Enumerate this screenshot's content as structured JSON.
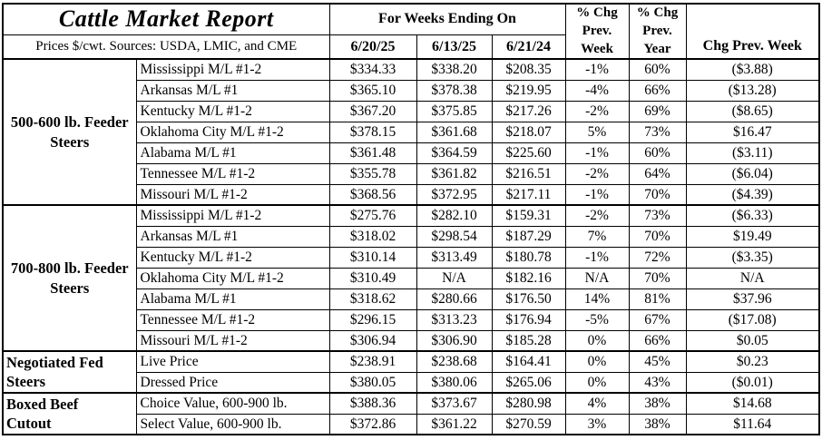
{
  "header": {
    "title": "Cattle Market Report",
    "sources": "Prices $/cwt. Sources: USDA, LMIC, and CME",
    "weeks_ending": "For Weeks Ending On",
    "dates": [
      "6/20/25",
      "6/13/25",
      "6/21/24"
    ],
    "pct_chg_prev_week": "% Chg\nPrev.\nWeek",
    "pct_chg_prev_year": "% Chg\nPrev.\nYear",
    "chg_prev_week": "Chg Prev. Week"
  },
  "colors": {
    "border": "#000000",
    "background": "#ffffff",
    "text": "#000000"
  },
  "sections": [
    {
      "category": "500-600 lb. Feeder\nSteers",
      "align": "center",
      "rows": [
        {
          "label": "Mississippi M/L #1-2",
          "values": [
            "$334.33",
            "$338.20",
            "$208.35",
            "-1%",
            "60%",
            "($3.88)"
          ]
        },
        {
          "label": "Arkansas M/L #1",
          "values": [
            "$365.10",
            "$378.38",
            "$219.95",
            "-4%",
            "66%",
            "($13.28)"
          ]
        },
        {
          "label": "Kentucky M/L #1-2",
          "values": [
            "$367.20",
            "$375.85",
            "$217.26",
            "-2%",
            "69%",
            "($8.65)"
          ]
        },
        {
          "label": "Oklahoma City M/L #1-2",
          "values": [
            "$378.15",
            "$361.68",
            "$218.07",
            "5%",
            "73%",
            "$16.47"
          ]
        },
        {
          "label": "Alabama M/L #1",
          "values": [
            "$361.48",
            "$364.59",
            "$225.60",
            "-1%",
            "60%",
            "($3.11)"
          ]
        },
        {
          "label": "Tennessee M/L #1-2",
          "values": [
            "$355.78",
            "$361.82",
            "$216.51",
            "-2%",
            "64%",
            "($6.04)"
          ]
        },
        {
          "label": "Missouri M/L #1-2",
          "values": [
            "$368.56",
            "$372.95",
            "$217.11",
            "-1%",
            "70%",
            "($4.39)"
          ]
        }
      ]
    },
    {
      "category": "700-800 lb. Feeder\nSteers",
      "align": "center",
      "rows": [
        {
          "label": "Mississippi M/L #1-2",
          "values": [
            "$275.76",
            "$282.10",
            "$159.31",
            "-2%",
            "73%",
            "($6.33)"
          ]
        },
        {
          "label": "Arkansas M/L #1",
          "values": [
            "$318.02",
            "$298.54",
            "$187.29",
            "7%",
            "70%",
            "$19.49"
          ]
        },
        {
          "label": "Kentucky M/L #1-2",
          "values": [
            "$310.14",
            "$313.49",
            "$180.78",
            "-1%",
            "72%",
            "($3.35)"
          ]
        },
        {
          "label": "Oklahoma City M/L #1-2",
          "values": [
            "$310.49",
            "N/A",
            "$182.16",
            "N/A",
            "70%",
            "N/A"
          ]
        },
        {
          "label": "Alabama M/L #1",
          "values": [
            "$318.62",
            "$280.66",
            "$176.50",
            "14%",
            "81%",
            "$37.96"
          ]
        },
        {
          "label": "Tennessee M/L #1-2",
          "values": [
            "$296.15",
            "$313.23",
            "$176.94",
            "-5%",
            "67%",
            "($17.08)"
          ]
        },
        {
          "label": "Missouri M/L #1-2",
          "values": [
            "$306.94",
            "$306.90",
            "$185.28",
            "0%",
            "66%",
            "$0.05"
          ]
        }
      ]
    },
    {
      "category": "Negotiated Fed\nSteers",
      "align": "left",
      "rows": [
        {
          "label": "Live Price",
          "values": [
            "$238.91",
            "$238.68",
            "$164.41",
            "0%",
            "45%",
            "$0.23"
          ]
        },
        {
          "label": "Dressed Price",
          "values": [
            "$380.05",
            "$380.06",
            "$265.06",
            "0%",
            "43%",
            "($0.01)"
          ]
        }
      ]
    },
    {
      "category": "Boxed Beef\nCutout",
      "align": "left",
      "rows": [
        {
          "label": "Choice Value, 600-900 lb.",
          "values": [
            "$388.36",
            "$373.67",
            "$280.98",
            "4%",
            "38%",
            "$14.68"
          ]
        },
        {
          "label": "Select Value, 600-900 lb.",
          "values": [
            "$372.86",
            "$361.22",
            "$270.59",
            "3%",
            "38%",
            "$11.64"
          ]
        }
      ]
    }
  ]
}
